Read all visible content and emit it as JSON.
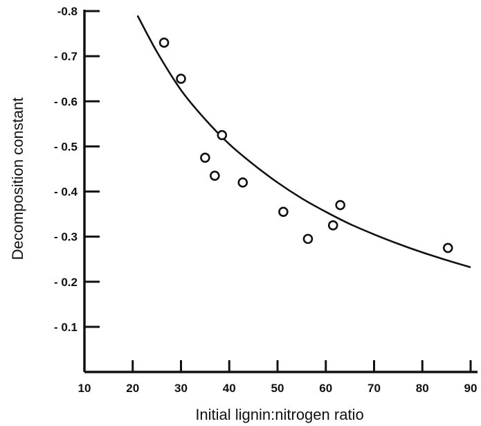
{
  "chart_data": {
    "type": "scatter",
    "title": "",
    "xlabel": "Initial lignin:nitrogen  ratio",
    "ylabel": "Decomposition constant",
    "xlim": [
      10,
      90
    ],
    "ylim": [
      0,
      -0.8
    ],
    "x_ticks": [
      10,
      20,
      30,
      40,
      50,
      60,
      70,
      80,
      90
    ],
    "x_tick_labels": [
      "10",
      "20",
      "30",
      "40",
      "50",
      "60",
      "70",
      "80",
      "90"
    ],
    "y_ticks": [
      -0.1,
      -0.2,
      -0.3,
      -0.4,
      -0.5,
      -0.6,
      -0.7,
      -0.8
    ],
    "y_tick_labels": [
      "- 0.1",
      "- 0.2",
      "- 0.3",
      "- 0.4",
      "- 0.5",
      "- 0.6",
      "- 0.7",
      "-0.8"
    ],
    "grid": false,
    "legend": "none",
    "series": [
      {
        "points": [
          {
            "x": 26.5,
            "y": -0.73
          },
          {
            "x": 30.0,
            "y": -0.65
          },
          {
            "x": 35.0,
            "y": -0.475
          },
          {
            "x": 37.0,
            "y": -0.435
          },
          {
            "x": 38.5,
            "y": -0.525
          },
          {
            "x": 42.8,
            "y": -0.42
          },
          {
            "x": 51.2,
            "y": -0.355
          },
          {
            "x": 56.3,
            "y": -0.295
          },
          {
            "x": 61.5,
            "y": -0.325
          },
          {
            "x": 63.0,
            "y": -0.37
          },
          {
            "x": 85.3,
            "y": -0.275
          }
        ]
      }
    ],
    "fit_curve": {
      "points": [
        {
          "x": 21.0,
          "y": -0.79
        },
        {
          "x": 25.0,
          "y": -0.71
        },
        {
          "x": 30.0,
          "y": -0.625
        },
        {
          "x": 35.0,
          "y": -0.56
        },
        {
          "x": 40.0,
          "y": -0.505
        },
        {
          "x": 45.0,
          "y": -0.46
        },
        {
          "x": 50.0,
          "y": -0.42
        },
        {
          "x": 55.0,
          "y": -0.385
        },
        {
          "x": 60.0,
          "y": -0.355
        },
        {
          "x": 65.0,
          "y": -0.328
        },
        {
          "x": 70.0,
          "y": -0.305
        },
        {
          "x": 75.0,
          "y": -0.284
        },
        {
          "x": 80.0,
          "y": -0.265
        },
        {
          "x": 85.0,
          "y": -0.248
        },
        {
          "x": 90.0,
          "y": -0.232
        }
      ]
    },
    "colors": {
      "axis": "#111111",
      "marker": "#111111",
      "curve": "#111111"
    }
  }
}
